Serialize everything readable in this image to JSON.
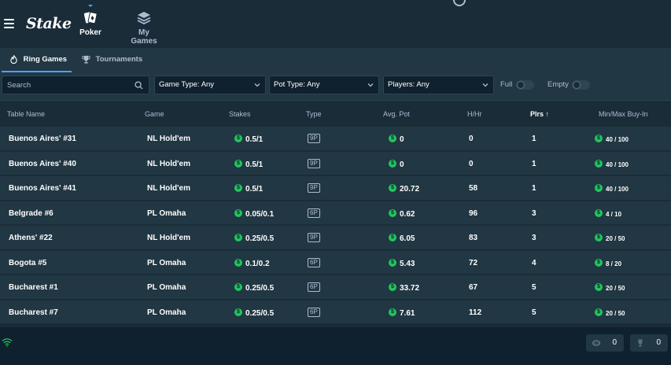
{
  "header": {
    "logo": "Stake",
    "nav": [
      {
        "label": "Poker",
        "icon": "cards-icon",
        "active": true
      },
      {
        "label": "My Games",
        "icon": "stack-icon",
        "active": false
      }
    ]
  },
  "tabs": [
    {
      "label": "Ring Games",
      "icon": "flame-icon",
      "active": true
    },
    {
      "label": "Tournaments",
      "icon": "trophy-icon",
      "active": false
    }
  ],
  "filters": {
    "search_placeholder": "Search",
    "game_type": "Game Type: Any",
    "pot_type": "Pot Type: Any",
    "players": "Players: Any",
    "full_label": "Full",
    "empty_label": "Empty"
  },
  "table": {
    "columns": {
      "name": "Table Name",
      "game": "Game",
      "stakes": "Stakes",
      "type": "Type",
      "avg_pot": "Avg. Pot",
      "hhr": "H/Hr",
      "plrs": "Plrs ↑",
      "buyin": "Min/Max Buy-In"
    },
    "rows": [
      {
        "name": "Buenos Aires' #31",
        "game": "NL Hold'em",
        "stakes": "0.5/1",
        "type": "9P",
        "avg_pot": "0",
        "hhr": "0",
        "plrs": "1",
        "buyin": "40 / 100"
      },
      {
        "name": "Buenos Aires' #40",
        "game": "NL Hold'em",
        "stakes": "0.5/1",
        "type": "9P",
        "avg_pot": "0",
        "hhr": "0",
        "plrs": "1",
        "buyin": "40 / 100"
      },
      {
        "name": "Buenos Aires' #41",
        "game": "NL Hold'em",
        "stakes": "0.5/1",
        "type": "9P",
        "avg_pot": "20.72",
        "hhr": "58",
        "plrs": "1",
        "buyin": "40 / 100"
      },
      {
        "name": "Belgrade #6",
        "game": "PL Omaha",
        "stakes": "0.05/0.1",
        "type": "6P",
        "avg_pot": "0.62",
        "hhr": "96",
        "plrs": "3",
        "buyin": "4 / 10"
      },
      {
        "name": "Athens' #22",
        "game": "NL Hold'em",
        "stakes": "0.25/0.5",
        "type": "9P",
        "avg_pot": "6.05",
        "hhr": "83",
        "plrs": "3",
        "buyin": "20 / 50"
      },
      {
        "name": "Bogota #5",
        "game": "PL Omaha",
        "stakes": "0.1/0.2",
        "type": "6P",
        "avg_pot": "5.43",
        "hhr": "72",
        "plrs": "4",
        "buyin": "8 / 20"
      },
      {
        "name": "Bucharest #1",
        "game": "PL Omaha",
        "stakes": "0.25/0.5",
        "type": "6P",
        "avg_pot": "33.72",
        "hhr": "67",
        "plrs": "5",
        "buyin": "20 / 50"
      },
      {
        "name": "Bucharest #7",
        "game": "PL Omaha",
        "stakes": "0.25/0.5",
        "type": "6P",
        "avg_pot": "7.61",
        "hhr": "112",
        "plrs": "5",
        "buyin": "20 / 50"
      }
    ]
  },
  "footer": {
    "tables_count": "0",
    "tournaments_count": "0"
  },
  "colors": {
    "bg": "#1a2c38",
    "panel": "#213743",
    "dark": "#0f212e",
    "accent": "#4fa3ff",
    "coin": "#21c55d"
  }
}
